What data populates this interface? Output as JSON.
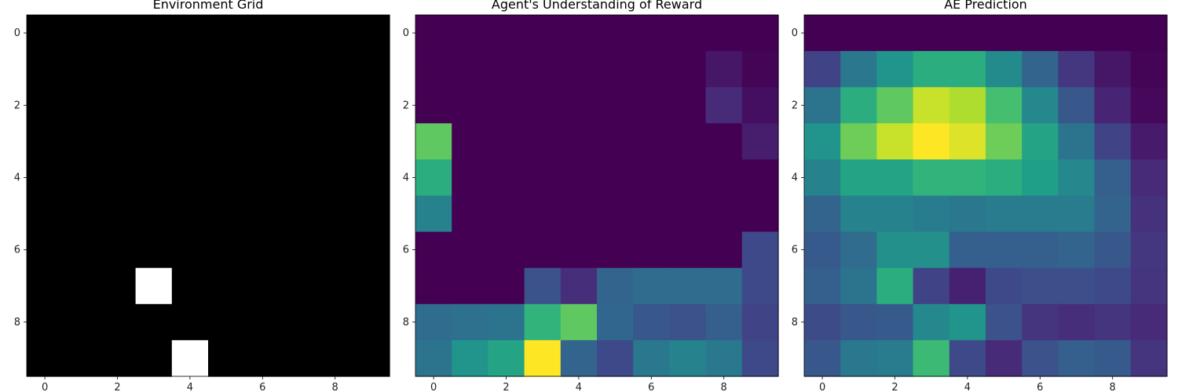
{
  "chart_data": [
    {
      "type": "heatmap",
      "title": "Environment Grid",
      "colormap": "gray",
      "vmin": 0,
      "vmax": 1,
      "xlabel": "",
      "ylabel": "",
      "xticks": [
        0,
        2,
        4,
        6,
        8
      ],
      "yticks": [
        0,
        2,
        4,
        6,
        8
      ],
      "xlim": [
        -0.5,
        9.5
      ],
      "ylim": [
        9.5,
        -0.5
      ],
      "values": [
        [
          0,
          0,
          0,
          0,
          0,
          0,
          0,
          0,
          0,
          0
        ],
        [
          0,
          0,
          0,
          0,
          0,
          0,
          0,
          0,
          0,
          0
        ],
        [
          0,
          0,
          0,
          0,
          0,
          0,
          0,
          0,
          0,
          0
        ],
        [
          0,
          0,
          0,
          0,
          0,
          0,
          0,
          0,
          0,
          0
        ],
        [
          0,
          0,
          0,
          0,
          0,
          0,
          0,
          0,
          0,
          0
        ],
        [
          0,
          0,
          0,
          0,
          0,
          0,
          0,
          0,
          0,
          0
        ],
        [
          0,
          0,
          0,
          0,
          0,
          0,
          0,
          0,
          0,
          0
        ],
        [
          0,
          0,
          0,
          1,
          0,
          0,
          0,
          0,
          0,
          0
        ],
        [
          0,
          0,
          0,
          0,
          0,
          0,
          0,
          0,
          0,
          0
        ],
        [
          0,
          0,
          0,
          0,
          1,
          0,
          0,
          0,
          0,
          0
        ]
      ]
    },
    {
      "type": "heatmap",
      "title": "Agent's Understanding of Reward",
      "colormap": "viridis",
      "vmin": 0,
      "vmax": 1,
      "xlabel": "",
      "ylabel": "",
      "xticks": [
        0,
        2,
        4,
        6,
        8
      ],
      "yticks": [
        0,
        2,
        4,
        6,
        8
      ],
      "xlim": [
        -0.5,
        9.5
      ],
      "ylim": [
        9.5,
        -0.5
      ],
      "values": [
        [
          0.0,
          0.0,
          0.0,
          0.0,
          0.0,
          0.0,
          0.0,
          0.0,
          0.0,
          0.0
        ],
        [
          0.0,
          0.0,
          0.0,
          0.0,
          0.0,
          0.0,
          0.0,
          0.0,
          0.06,
          0.01
        ],
        [
          0.0,
          0.0,
          0.0,
          0.0,
          0.0,
          0.0,
          0.0,
          0.0,
          0.12,
          0.04
        ],
        [
          0.75,
          0.0,
          0.0,
          0.0,
          0.0,
          0.0,
          0.0,
          0.0,
          0.0,
          0.08
        ],
        [
          0.62,
          0.0,
          0.0,
          0.0,
          0.0,
          0.0,
          0.0,
          0.0,
          0.0,
          0.0
        ],
        [
          0.45,
          0.0,
          0.0,
          0.0,
          0.0,
          0.0,
          0.0,
          0.0,
          0.0,
          0.0
        ],
        [
          0.0,
          0.0,
          0.0,
          0.0,
          0.0,
          0.0,
          0.0,
          0.0,
          0.0,
          0.22
        ],
        [
          0.0,
          0.0,
          0.0,
          0.25,
          0.13,
          0.32,
          0.35,
          0.35,
          0.35,
          0.22
        ],
        [
          0.35,
          0.37,
          0.38,
          0.65,
          0.75,
          0.33,
          0.27,
          0.25,
          0.3,
          0.2
        ],
        [
          0.38,
          0.52,
          0.58,
          1.0,
          0.32,
          0.22,
          0.4,
          0.45,
          0.4,
          0.22
        ]
      ]
    },
    {
      "type": "heatmap",
      "title": "AE Prediction",
      "colormap": "viridis",
      "vmin": 0,
      "vmax": 1,
      "xlabel": "",
      "ylabel": "",
      "xticks": [
        0,
        2,
        4,
        6,
        8
      ],
      "yticks": [
        0,
        2,
        4,
        6,
        8
      ],
      "xlim": [
        -0.5,
        9.5
      ],
      "ylim": [
        9.5,
        -0.5
      ],
      "values": [
        [
          0.0,
          0.0,
          0.0,
          0.0,
          0.0,
          0.0,
          0.0,
          0.0,
          0.0,
          0.0
        ],
        [
          0.2,
          0.4,
          0.52,
          0.62,
          0.62,
          0.48,
          0.32,
          0.16,
          0.06,
          0.01
        ],
        [
          0.38,
          0.62,
          0.75,
          0.92,
          0.88,
          0.7,
          0.47,
          0.27,
          0.1,
          0.02
        ],
        [
          0.52,
          0.78,
          0.92,
          1.0,
          0.95,
          0.78,
          0.58,
          0.38,
          0.2,
          0.07
        ],
        [
          0.45,
          0.58,
          0.58,
          0.65,
          0.65,
          0.62,
          0.56,
          0.47,
          0.3,
          0.12
        ],
        [
          0.32,
          0.45,
          0.45,
          0.42,
          0.4,
          0.42,
          0.42,
          0.42,
          0.32,
          0.14
        ],
        [
          0.28,
          0.35,
          0.5,
          0.5,
          0.3,
          0.3,
          0.3,
          0.32,
          0.27,
          0.16
        ],
        [
          0.3,
          0.38,
          0.62,
          0.2,
          0.09,
          0.22,
          0.24,
          0.24,
          0.22,
          0.15
        ],
        [
          0.23,
          0.27,
          0.28,
          0.47,
          0.52,
          0.25,
          0.15,
          0.13,
          0.15,
          0.12
        ],
        [
          0.27,
          0.4,
          0.42,
          0.68,
          0.22,
          0.12,
          0.25,
          0.3,
          0.28,
          0.15
        ]
      ]
    }
  ]
}
